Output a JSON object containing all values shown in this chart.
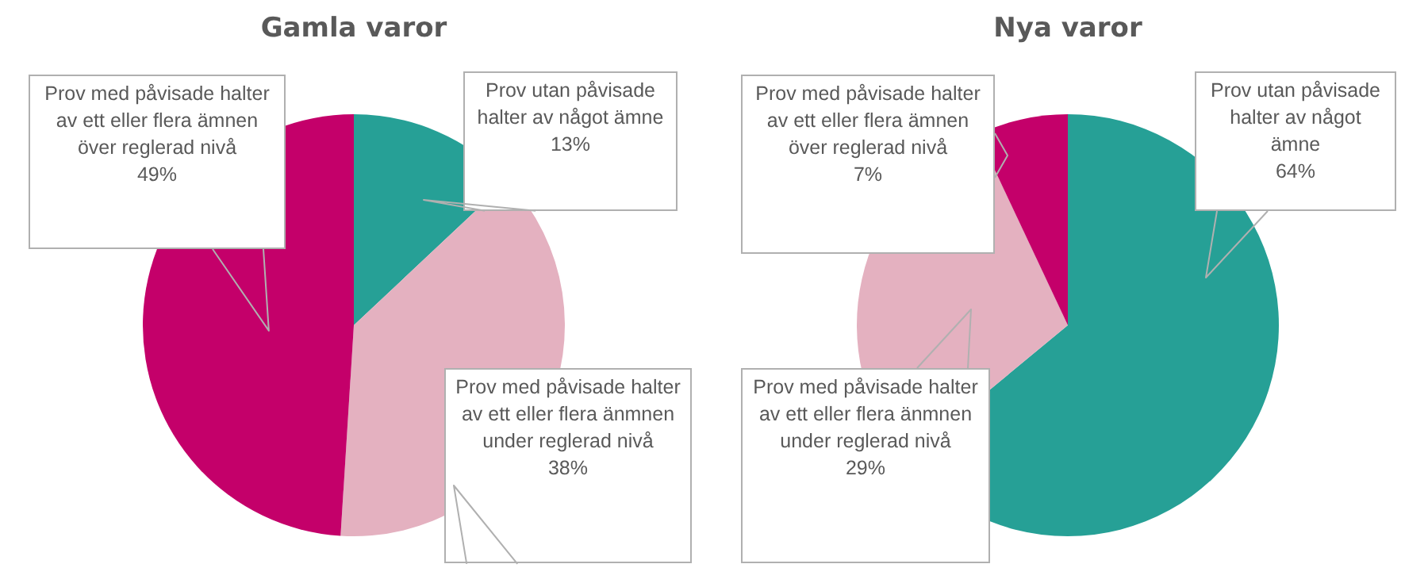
{
  "chart_data": [
    {
      "type": "pie",
      "title": "Gamla varor",
      "categories": [
        "Prov utan påvisade halter av något ämne",
        "Prov med påvisade halter av ett eller flera änmnen under reglerad nivå",
        "Prov med påvisade halter av ett eller flera ämnen över reglerad nivå"
      ],
      "values": [
        13,
        38,
        49
      ],
      "colors": [
        "#26a096",
        "#e4b1c0",
        "#c4006a"
      ],
      "value_labels": [
        "13%",
        "38%",
        "49%"
      ]
    },
    {
      "type": "pie",
      "title": "Nya varor",
      "categories": [
        "Prov utan påvisade halter av något ämne",
        "Prov med påvisade halter av ett eller flera änmnen under reglerad nivå",
        "Prov med påvisade halter av ett eller flera ämnen över reglerad nivå"
      ],
      "values": [
        64,
        29,
        7
      ],
      "colors": [
        "#26a096",
        "#e4b1c0",
        "#c4006a"
      ],
      "value_labels": [
        "64%",
        "29%",
        "7%"
      ]
    }
  ]
}
